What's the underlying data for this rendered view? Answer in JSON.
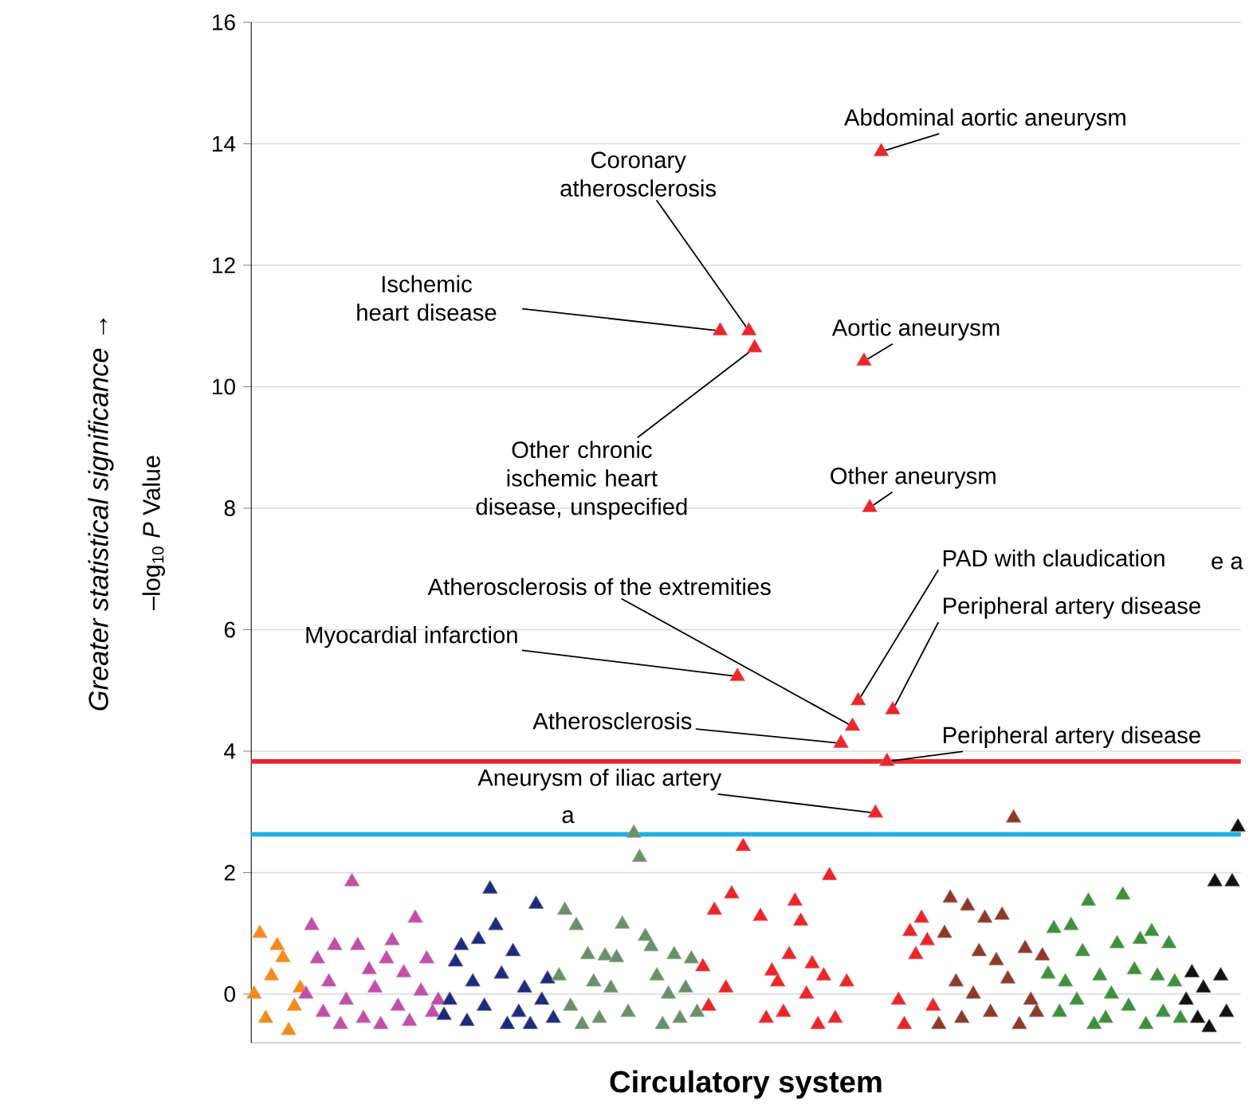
{
  "chart_data": {
    "type": "scatter",
    "xlabel": "Circulatory system",
    "ylabel": "–log$_{10}$ *P* Value",
    "categories": [
      null,
      null,
      null,
      null,
      null,
      null,
      null,
      null,
      null,
      null,
      null,
      null,
      null,
      null,
      null,
      null,
      null,
      null,
      null,
      null,
      null,
      null,
      null,
      null,
      null,
      null,
      null,
      null,
      null,
      null,
      null,
      null,
      null,
      null,
      null,
      null,
      null,
      null,
      null,
      null,
      null,
      null,
      null,
      null,
      null,
      null,
      null,
      null,
      null,
      null,
      null,
      null,
      null,
      null,
      null,
      null,
      null,
      null,
      null,
      null,
      null,
      null,
      null,
      null,
      null,
      null,
      null,
      null,
      null,
      null,
      null,
      null,
      null,
      null,
      null,
      null,
      null,
      null,
      null,
      null,
      null,
      null,
      null,
      null,
      null,
      null,
      null,
      null,
      null,
      null,
      null,
      null,
      null,
      null,
      null,
      null,
      null,
      null,
      null,
      null,
      null,
      null,
      null,
      null,
      null,
      null,
      null,
      null,
      null,
      null,
      null,
      null,
      null,
      null,
      null,
      null,
      null,
      null,
      null,
      null,
      null,
      null,
      null,
      null,
      null,
      null,
      null,
      null,
      null,
      null,
      null,
      null,
      null,
      null,
      null,
      null,
      null,
      null,
      null,
      null,
      null,
      null,
      null,
      null,
      null,
      null,
      null,
      null,
      null,
      null,
      null,
      null,
      null,
      null,
      null,
      null,
      null,
      null,
      null,
      null,
      null,
      null,
      null,
      null,
      null,
      null,
      null,
      null,
      null,
      null,
      null,
      null
    ],
    "ylim": [
      -0.8,
      16
    ],
    "yticks": [
      0,
      2,
      4,
      6,
      8,
      10,
      12,
      14,
      16
    ],
    "tick_labels": "y",
    "grid": "y",
    "marker": "triangle",
    "ref_lines": [
      {
        "axis": "y",
        "value": 3.83,
        "color": "#e8262b"
      },
      {
        "axis": "y",
        "value": 2.63,
        "color": "#22aee3"
      }
    ],
    "series": [
      {
        "color": "#f28a1e",
        "values": [
          0.0,
          1.0,
          -0.4,
          0.3,
          0.8,
          0.6,
          -0.6,
          -0.2,
          0.1,
          null,
          null,
          null,
          null,
          null,
          null,
          null,
          null,
          null,
          null,
          null,
          null,
          null,
          null,
          null,
          null,
          null,
          null,
          null,
          null,
          null,
          null,
          null,
          null,
          null,
          null,
          null,
          null,
          null,
          null,
          null,
          null,
          null,
          null,
          null,
          null,
          null,
          null,
          null,
          null,
          null,
          null,
          null,
          null,
          null,
          null,
          null,
          null,
          null,
          null,
          null,
          null,
          null,
          null,
          null,
          null,
          null,
          null,
          null,
          null,
          null,
          null,
          null,
          null,
          null,
          null,
          null,
          null,
          null,
          null,
          null,
          null,
          null,
          null,
          null,
          null,
          null,
          null,
          null,
          null,
          null,
          null,
          null,
          null,
          null,
          null,
          null,
          null,
          null,
          null,
          null,
          null,
          null,
          null,
          null,
          null,
          null,
          null,
          null,
          null,
          null,
          null,
          null,
          null,
          null,
          null,
          null,
          null,
          null,
          null,
          null,
          null,
          null,
          null,
          null,
          null,
          null,
          null,
          null,
          null,
          null,
          null,
          null,
          null,
          null,
          null,
          null,
          null,
          null,
          null,
          null,
          null,
          null,
          null,
          null,
          null,
          null,
          null,
          null,
          null,
          null,
          null,
          null,
          null,
          null,
          null,
          null,
          null,
          null,
          null,
          null,
          null,
          null,
          null,
          null,
          null,
          null,
          null,
          null,
          null,
          null,
          null,
          null
        ]
      },
      {
        "color": "#c04fa7",
        "values": [
          null,
          null,
          null,
          null,
          null,
          null,
          null,
          null,
          null,
          0.0,
          1.13,
          0.58,
          -0.3,
          0.2,
          0.8,
          -0.5,
          -0.1,
          1.85,
          0.8,
          -0.4,
          0.4,
          0.1,
          -0.5,
          0.58,
          0.88,
          -0.2,
          0.35,
          -0.45,
          1.25,
          0.05,
          0.58,
          -0.3,
          -0.1,
          null,
          null,
          null,
          null,
          null,
          null,
          null,
          null,
          null,
          null,
          null,
          null,
          null,
          null,
          null,
          null,
          null,
          null,
          null,
          null,
          null,
          null,
          null,
          null,
          null,
          null,
          null,
          null,
          null,
          null,
          null,
          null,
          null,
          null,
          null,
          null,
          null,
          null,
          null,
          null,
          null,
          null,
          null,
          null,
          null,
          null,
          null,
          null,
          null,
          null,
          null,
          null,
          null,
          null,
          null,
          null,
          null,
          null,
          null,
          null,
          null,
          null,
          null,
          null,
          null,
          null,
          null,
          null,
          null,
          null,
          null,
          null,
          null,
          null,
          null,
          null,
          null,
          null,
          null,
          null,
          null,
          null,
          null,
          null,
          null,
          null,
          null,
          null,
          null,
          null,
          null,
          null,
          null,
          null,
          null,
          null,
          null,
          null,
          null,
          null,
          null,
          null,
          null,
          null,
          null,
          null,
          null,
          null,
          null,
          null,
          null,
          null,
          null,
          null,
          null,
          null,
          null,
          null,
          null,
          null,
          null,
          null,
          null,
          null,
          null,
          null,
          null,
          null,
          null,
          null,
          null,
          null,
          null,
          null,
          null,
          null,
          null,
          null,
          null
        ]
      },
      {
        "color": "#1f2a7a",
        "values": [
          null,
          null,
          null,
          null,
          null,
          null,
          null,
          null,
          null,
          null,
          null,
          null,
          null,
          null,
          null,
          null,
          null,
          null,
          null,
          null,
          null,
          null,
          null,
          null,
          null,
          null,
          null,
          null,
          null,
          null,
          null,
          null,
          null,
          -0.35,
          -0.1,
          0.53,
          0.8,
          -0.45,
          0.2,
          0.9,
          -0.2,
          1.73,
          1.13,
          0.33,
          -0.5,
          0.7,
          -0.3,
          0.1,
          -0.5,
          1.48,
          -0.1,
          0.25,
          -0.4,
          null,
          null,
          null,
          null,
          null,
          null,
          null,
          null,
          null,
          null,
          null,
          null,
          null,
          null,
          null,
          null,
          null,
          null,
          null,
          null,
          null,
          null,
          null,
          null,
          null,
          null,
          null,
          null,
          null,
          null,
          null,
          null,
          null,
          null,
          null,
          null,
          null,
          null,
          null,
          null,
          null,
          null,
          null,
          null,
          null,
          null,
          null,
          null,
          null,
          null,
          null,
          null,
          null,
          null,
          null,
          null,
          null,
          null,
          null,
          null,
          null,
          null,
          null,
          null,
          null,
          null,
          null,
          null,
          null,
          null,
          null,
          null,
          null,
          null,
          null,
          null,
          null,
          null,
          null,
          null,
          null,
          null,
          null,
          null,
          null,
          null,
          null,
          null,
          null,
          null,
          null,
          null,
          null,
          null,
          null,
          null,
          null,
          null,
          null,
          null,
          null,
          null,
          null,
          null,
          null,
          null,
          null,
          null,
          null,
          null,
          null,
          null,
          null,
          null,
          null,
          null,
          null,
          null,
          null
        ]
      },
      {
        "color": "#6b8f6b",
        "values": [
          null,
          null,
          null,
          null,
          null,
          null,
          null,
          null,
          null,
          null,
          null,
          null,
          null,
          null,
          null,
          null,
          null,
          null,
          null,
          null,
          null,
          null,
          null,
          null,
          null,
          null,
          null,
          null,
          null,
          null,
          null,
          null,
          null,
          null,
          null,
          null,
          null,
          null,
          null,
          null,
          null,
          null,
          null,
          null,
          null,
          null,
          null,
          null,
          null,
          null,
          null,
          null,
          null,
          0.3,
          1.38,
          -0.2,
          1.13,
          -0.5,
          0.65,
          0.2,
          -0.4,
          0.63,
          0.1,
          0.6,
          1.15,
          -0.3,
          2.65,
          2.25,
          0.95,
          0.78,
          0.3,
          -0.5,
          0.0,
          0.65,
          -0.4,
          0.1,
          0.58,
          -0.3,
          null,
          null,
          null,
          null,
          null,
          null,
          null,
          null,
          null,
          null,
          null,
          null,
          null,
          null,
          null,
          null,
          null,
          null,
          null,
          null,
          null,
          null,
          null,
          null,
          null,
          null,
          null,
          null,
          null,
          null,
          null,
          null,
          null,
          null,
          null,
          null,
          null,
          null,
          null,
          null,
          null,
          null,
          null,
          null,
          null,
          null,
          null,
          null,
          null,
          null,
          null,
          null,
          null,
          null,
          null,
          null,
          null,
          null,
          null,
          null,
          null,
          null,
          null,
          null,
          null,
          null,
          null,
          null,
          null,
          null,
          null,
          null,
          null,
          null,
          null,
          null,
          null,
          null,
          null,
          null,
          null,
          null,
          null,
          null,
          null,
          null,
          null,
          null,
          null,
          null,
          null,
          null,
          null,
          null
        ]
      },
      {
        "color": "#e8262b",
        "values": [
          null,
          null,
          null,
          null,
          null,
          null,
          null,
          null,
          null,
          null,
          null,
          null,
          null,
          null,
          null,
          null,
          null,
          null,
          null,
          null,
          null,
          null,
          null,
          null,
          null,
          null,
          null,
          null,
          null,
          null,
          null,
          null,
          null,
          null,
          null,
          null,
          null,
          null,
          null,
          null,
          null,
          null,
          null,
          null,
          null,
          null,
          null,
          null,
          null,
          null,
          null,
          null,
          null,
          null,
          null,
          null,
          null,
          null,
          null,
          null,
          null,
          null,
          null,
          null,
          null,
          null,
          null,
          null,
          null,
          null,
          null,
          null,
          null,
          null,
          null,
          null,
          null,
          null,
          0.45,
          -0.2,
          1.38,
          10.92,
          0.1,
          1.65,
          5.23,
          2.43,
          10.92,
          10.64,
          1.28,
          -0.4,
          0.38,
          0.2,
          -0.3,
          0.65,
          1.53,
          1.2,
          0.0,
          0.5,
          -0.5,
          0.3,
          1.95,
          -0.4,
          4.13,
          0.2,
          4.41,
          4.83,
          10.42,
          8.01,
          2.98,
          13.87,
          3.83,
          4.68,
          -0.1,
          -0.5,
          1.03,
          0.65,
          1.25,
          0.88,
          -0.2,
          null,
          null,
          null,
          null,
          null,
          null,
          null,
          null,
          null,
          null,
          null,
          null,
          null,
          null,
          null,
          null,
          null,
          null,
          null,
          null,
          null,
          null,
          null,
          null,
          null,
          null,
          null,
          null,
          null,
          null,
          null,
          null,
          null,
          null,
          null,
          null,
          null,
          null,
          null,
          null,
          null,
          null,
          null,
          null,
          null,
          null,
          null,
          null,
          null,
          null,
          null,
          null,
          null
        ]
      },
      {
        "color": "#8b3a2b",
        "values": [
          null,
          null,
          null,
          null,
          null,
          null,
          null,
          null,
          null,
          null,
          null,
          null,
          null,
          null,
          null,
          null,
          null,
          null,
          null,
          null,
          null,
          null,
          null,
          null,
          null,
          null,
          null,
          null,
          null,
          null,
          null,
          null,
          null,
          null,
          null,
          null,
          null,
          null,
          null,
          null,
          null,
          null,
          null,
          null,
          null,
          null,
          null,
          null,
          null,
          null,
          null,
          null,
          null,
          null,
          null,
          null,
          null,
          null,
          null,
          null,
          null,
          null,
          null,
          null,
          null,
          null,
          null,
          null,
          null,
          null,
          null,
          null,
          null,
          null,
          null,
          null,
          null,
          null,
          null,
          null,
          null,
          null,
          null,
          null,
          null,
          null,
          null,
          null,
          null,
          null,
          null,
          null,
          null,
          null,
          null,
          null,
          null,
          null,
          null,
          null,
          null,
          null,
          null,
          null,
          null,
          null,
          null,
          null,
          null,
          null,
          null,
          null,
          null,
          null,
          null,
          null,
          null,
          null,
          null,
          -0.5,
          1.0,
          1.58,
          0.2,
          -0.4,
          1.45,
          0.0,
          0.7,
          1.25,
          -0.3,
          0.55,
          1.3,
          0.25,
          2.9,
          -0.5,
          0.75,
          -0.1,
          -0.3,
          0.63,
          null,
          null,
          null,
          null,
          null,
          null,
          null,
          null,
          null,
          null,
          null,
          null,
          null,
          null,
          null,
          null,
          null,
          null,
          null,
          null,
          null,
          null,
          null,
          null,
          null,
          null,
          null,
          null,
          null,
          null,
          null,
          null,
          null,
          null
        ]
      },
      {
        "color": "#3f8f3f",
        "values": [
          null,
          null,
          null,
          null,
          null,
          null,
          null,
          null,
          null,
          null,
          null,
          null,
          null,
          null,
          null,
          null,
          null,
          null,
          null,
          null,
          null,
          null,
          null,
          null,
          null,
          null,
          null,
          null,
          null,
          null,
          null,
          null,
          null,
          null,
          null,
          null,
          null,
          null,
          null,
          null,
          null,
          null,
          null,
          null,
          null,
          null,
          null,
          null,
          null,
          null,
          null,
          null,
          null,
          null,
          null,
          null,
          null,
          null,
          null,
          null,
          null,
          null,
          null,
          null,
          null,
          null,
          null,
          null,
          null,
          null,
          null,
          null,
          null,
          null,
          null,
          null,
          null,
          null,
          null,
          null,
          null,
          null,
          null,
          null,
          null,
          null,
          null,
          null,
          null,
          null,
          null,
          null,
          null,
          null,
          null,
          null,
          null,
          null,
          null,
          null,
          null,
          null,
          null,
          null,
          null,
          null,
          null,
          null,
          null,
          null,
          null,
          null,
          null,
          null,
          null,
          null,
          null,
          null,
          null,
          null,
          null,
          null,
          null,
          null,
          null,
          null,
          null,
          null,
          null,
          null,
          null,
          null,
          null,
          null,
          null,
          null,
          null,
          null,
          0.33,
          1.08,
          -0.3,
          0.2,
          1.13,
          -0.1,
          0.7,
          1.53,
          -0.5,
          0.3,
          -0.4,
          0.0,
          0.83,
          1.63,
          -0.2,
          0.4,
          0.9,
          -0.5,
          1.03,
          0.3,
          -0.3,
          0.83,
          0.2,
          -0.4,
          null,
          null,
          null,
          null,
          null,
          null,
          null,
          null,
          null,
          null
        ]
      },
      {
        "color": "#111111",
        "values": [
          null,
          null,
          null,
          null,
          null,
          null,
          null,
          null,
          null,
          null,
          null,
          null,
          null,
          null,
          null,
          null,
          null,
          null,
          null,
          null,
          null,
          null,
          null,
          null,
          null,
          null,
          null,
          null,
          null,
          null,
          null,
          null,
          null,
          null,
          null,
          null,
          null,
          null,
          null,
          null,
          null,
          null,
          null,
          null,
          null,
          null,
          null,
          null,
          null,
          null,
          null,
          null,
          null,
          null,
          null,
          null,
          null,
          null,
          null,
          null,
          null,
          null,
          null,
          null,
          null,
          null,
          null,
          null,
          null,
          null,
          null,
          null,
          null,
          null,
          null,
          null,
          null,
          null,
          null,
          null,
          null,
          null,
          null,
          null,
          null,
          null,
          null,
          null,
          null,
          null,
          null,
          null,
          null,
          null,
          null,
          null,
          null,
          null,
          null,
          null,
          null,
          null,
          null,
          null,
          null,
          null,
          null,
          null,
          null,
          null,
          null,
          null,
          null,
          null,
          null,
          null,
          null,
          null,
          null,
          null,
          null,
          null,
          null,
          null,
          null,
          null,
          null,
          null,
          null,
          null,
          null,
          null,
          null,
          null,
          null,
          null,
          null,
          null,
          null,
          null,
          null,
          null,
          null,
          null,
          null,
          null,
          null,
          null,
          null,
          null,
          null,
          null,
          null,
          null,
          null,
          null,
          null,
          null,
          null,
          null,
          null,
          null,
          -0.1,
          0.35,
          -0.4,
          0.1,
          -0.55,
          1.85,
          0.3,
          -0.3,
          1.85,
          2.75
        ]
      }
    ],
    "annotations": [
      "Abdominal aortic aneurysm",
      "Coronary atherosclerosis",
      "Ischemic heart disease",
      "Aortic aneurysm",
      "Other chronic ischemic heart disease, unspecified",
      "Other aneurysm",
      "Atherosclerosis of the extremities",
      "PAD with claudication",
      "Peripheral artery disease",
      "Myocardial infarction",
      "Atherosclerosis",
      "Peripheral artery disease",
      "Aneurysm of iliac artery",
      "a",
      "e a",
      "Greater statistical significance →"
    ]
  }
}
